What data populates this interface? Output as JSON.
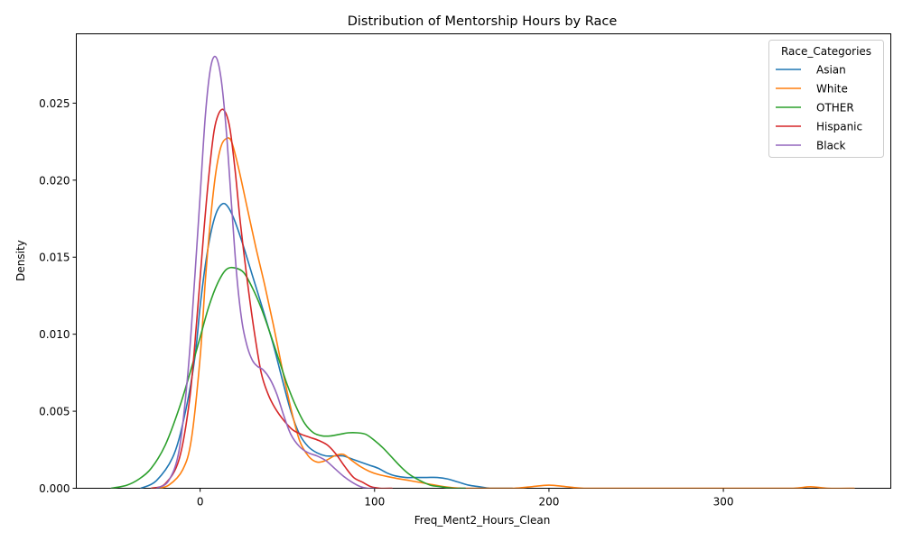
{
  "chart_data": {
    "type": "line",
    "title": "Distribution of Mentorship Hours by Race",
    "xlabel": "Freq_Ment2_Hours_Clean",
    "ylabel": "Density",
    "xlim": [
      -71,
      396
    ],
    "ylim": [
      0,
      0.0295
    ],
    "xticks": [
      0,
      100,
      200,
      300
    ],
    "xtick_labels": [
      "0",
      "100",
      "200",
      "300"
    ],
    "yticks": [
      0,
      0.005,
      0.01,
      0.015,
      0.02,
      0.025
    ],
    "ytick_labels": [
      "0.000",
      "0.005",
      "0.010",
      "0.015",
      "0.020",
      "0.025"
    ],
    "grid": false,
    "legend": {
      "title": "Race_Categories",
      "location": "top-right"
    },
    "series": [
      {
        "name": "Asian",
        "color": "#1f77b4",
        "x": [
          -34,
          -25,
          -15,
          -8,
          -3,
          0,
          3,
          6,
          9,
          12,
          15,
          19,
          24,
          30,
          36,
          42,
          47,
          52,
          57,
          62,
          67,
          72,
          77,
          82,
          87,
          92,
          97,
          102,
          107,
          112,
          118,
          124,
          130,
          136,
          142,
          148,
          154,
          160,
          166,
          172,
          179
        ],
        "y": [
          0.0,
          0.0005,
          0.0022,
          0.0052,
          0.0085,
          0.0118,
          0.0145,
          0.0165,
          0.0178,
          0.0184,
          0.0184,
          0.0176,
          0.016,
          0.0138,
          0.0116,
          0.0093,
          0.0071,
          0.005,
          0.0035,
          0.0027,
          0.0023,
          0.0021,
          0.0021,
          0.0021,
          0.0019,
          0.0017,
          0.0015,
          0.0013,
          0.001,
          0.0008,
          0.0007,
          0.0007,
          0.0007,
          0.0007,
          0.0006,
          0.0004,
          0.0002,
          0.0001,
          0.0,
          0.0,
          0.0
        ]
      },
      {
        "name": "White",
        "color": "#ff7f0e",
        "x": [
          -25,
          -18,
          -10,
          -5,
          0,
          3,
          6,
          9,
          12,
          15,
          18,
          22,
          27,
          32,
          37,
          42,
          47,
          52,
          57,
          62,
          67,
          72,
          77,
          82,
          87,
          92,
          97,
          102,
          110,
          120,
          130,
          140,
          150,
          160,
          170,
          180,
          190,
          200,
          210,
          220,
          240,
          260,
          280,
          300,
          320,
          340,
          350,
          360,
          375
        ],
        "y": [
          0.0,
          0.0002,
          0.0012,
          0.0032,
          0.0085,
          0.0135,
          0.0175,
          0.0205,
          0.0222,
          0.0227,
          0.0225,
          0.0208,
          0.0182,
          0.0156,
          0.0132,
          0.0106,
          0.0078,
          0.0052,
          0.0031,
          0.0021,
          0.0017,
          0.0018,
          0.0021,
          0.0022,
          0.0018,
          0.0014,
          0.0011,
          0.0009,
          0.0007,
          0.0005,
          0.0003,
          0.0001,
          0.0,
          0.0,
          0.0,
          0.0,
          0.0001,
          0.0002,
          0.0001,
          0.0,
          0.0,
          0.0,
          0.0,
          0.0,
          0.0,
          0.0,
          0.0001,
          0.0,
          0.0
        ]
      },
      {
        "name": "OTHER",
        "color": "#2ca02c",
        "x": [
          -51,
          -42,
          -35,
          -28,
          -20,
          -12,
          -5,
          0,
          5,
          10,
          15,
          20,
          25,
          30,
          35,
          40,
          45,
          50,
          55,
          60,
          65,
          70,
          75,
          80,
          85,
          90,
          95,
          100,
          105,
          110,
          115,
          120,
          126,
          132,
          138,
          145,
          152
        ],
        "y": [
          0.0,
          0.0002,
          0.0006,
          0.0013,
          0.0028,
          0.0052,
          0.0078,
          0.0098,
          0.0118,
          0.0133,
          0.0142,
          0.0143,
          0.014,
          0.013,
          0.0117,
          0.0101,
          0.0084,
          0.0067,
          0.0053,
          0.0042,
          0.0036,
          0.0034,
          0.0034,
          0.0035,
          0.0036,
          0.0036,
          0.0035,
          0.0031,
          0.0026,
          0.002,
          0.0014,
          0.0009,
          0.0005,
          0.0002,
          0.0001,
          0.0,
          0.0
        ]
      },
      {
        "name": "Hispanic",
        "color": "#d62728",
        "x": [
          -28,
          -20,
          -12,
          -6,
          -2,
          2,
          5,
          8,
          11,
          14,
          17,
          20,
          23,
          27,
          31,
          35,
          39,
          43,
          48,
          53,
          58,
          63,
          68,
          73,
          78,
          83,
          88,
          93,
          98,
          103,
          110
        ],
        "y": [
          0.0,
          0.0003,
          0.0019,
          0.0058,
          0.0108,
          0.0165,
          0.0203,
          0.0232,
          0.0244,
          0.0245,
          0.0234,
          0.0207,
          0.0173,
          0.0135,
          0.0102,
          0.0075,
          0.0061,
          0.0052,
          0.0044,
          0.0038,
          0.0035,
          0.0033,
          0.0031,
          0.0028,
          0.0022,
          0.0014,
          0.0007,
          0.0004,
          0.0001,
          0.0,
          0.0
        ]
      },
      {
        "name": "Black",
        "color": "#9467bd",
        "x": [
          -25,
          -18,
          -12,
          -7,
          -3,
          0,
          3,
          6,
          9,
          12,
          15,
          18,
          21,
          24,
          27,
          30,
          33,
          36,
          40,
          44,
          48,
          52,
          57,
          62,
          67,
          72,
          77,
          82,
          87,
          92,
          96,
          100
        ],
        "y": [
          0.0,
          0.0005,
          0.0025,
          0.0075,
          0.0138,
          0.019,
          0.0242,
          0.0273,
          0.028,
          0.0266,
          0.0232,
          0.0184,
          0.0138,
          0.0108,
          0.0092,
          0.0083,
          0.0079,
          0.0077,
          0.0071,
          0.0061,
          0.0047,
          0.0035,
          0.0027,
          0.0023,
          0.0021,
          0.0018,
          0.0013,
          0.0008,
          0.0004,
          0.0001,
          0.0,
          0.0
        ]
      }
    ]
  }
}
